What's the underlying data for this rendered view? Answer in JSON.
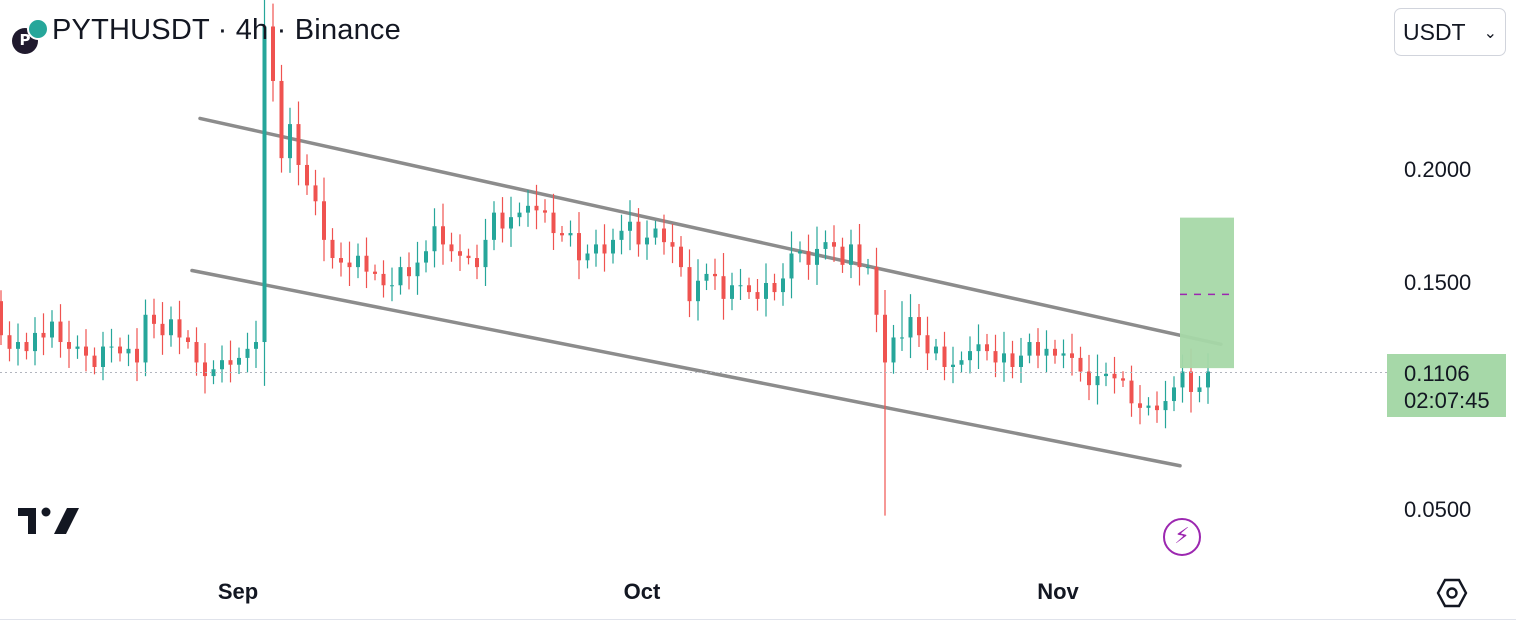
{
  "header": {
    "title": "PYTHUSDT · 4h · Binance",
    "coin_icon": "pyth-network-icon"
  },
  "currency_select": {
    "value": "USDT"
  },
  "price_tag": {
    "price": "0.1106",
    "countdown": "02:07:45"
  },
  "colors": {
    "up": "#26a69a",
    "down": "#ef5350",
    "channel": "#8c8c8c",
    "target_box": "#a6d8a8",
    "target_dash": "#9c27b0",
    "bolt": "#9c27b0"
  },
  "chart_data": {
    "type": "candlestick",
    "symbol": "PYTHUSDT",
    "interval": "4h",
    "exchange": "Binance",
    "y_ticks": [
      "0.2000",
      "0.1500",
      "0.0500"
    ],
    "x_ticks": [
      "Sep",
      "Oct",
      "Nov"
    ],
    "last_price": 0.1106,
    "grid": false,
    "candles": [
      [
        0.142,
        0.127
      ],
      [
        0.127,
        0.121
      ],
      [
        0.121,
        0.124
      ],
      [
        0.124,
        0.12
      ],
      [
        0.12,
        0.128
      ],
      [
        0.128,
        0.126
      ],
      [
        0.126,
        0.133
      ],
      [
        0.133,
        0.124
      ],
      [
        0.124,
        0.121
      ],
      [
        0.121,
        0.122
      ],
      [
        0.122,
        0.118
      ],
      [
        0.118,
        0.113
      ],
      [
        0.113,
        0.122
      ],
      [
        0.122,
        0.122
      ],
      [
        0.122,
        0.119
      ],
      [
        0.119,
        0.121
      ],
      [
        0.121,
        0.115
      ],
      [
        0.115,
        0.136
      ],
      [
        0.136,
        0.132
      ],
      [
        0.132,
        0.127
      ],
      [
        0.127,
        0.134
      ],
      [
        0.134,
        0.126
      ],
      [
        0.126,
        0.124
      ],
      [
        0.124,
        0.115
      ],
      [
        0.115,
        0.109
      ],
      [
        0.109,
        0.112
      ],
      [
        0.112,
        0.116
      ],
      [
        0.116,
        0.114
      ],
      [
        0.114,
        0.117
      ],
      [
        0.117,
        0.121
      ],
      [
        0.121,
        0.124
      ],
      [
        0.124,
        0.263
      ],
      [
        0.263,
        0.239
      ],
      [
        0.239,
        0.205
      ],
      [
        0.205,
        0.22
      ],
      [
        0.22,
        0.202
      ],
      [
        0.202,
        0.193
      ],
      [
        0.193,
        0.186
      ],
      [
        0.186,
        0.169
      ],
      [
        0.169,
        0.161
      ],
      [
        0.161,
        0.159
      ],
      [
        0.159,
        0.157
      ],
      [
        0.157,
        0.162
      ],
      [
        0.162,
        0.155
      ],
      [
        0.155,
        0.154
      ],
      [
        0.154,
        0.149
      ],
      [
        0.149,
        0.149
      ],
      [
        0.149,
        0.157
      ],
      [
        0.157,
        0.153
      ],
      [
        0.153,
        0.159
      ],
      [
        0.159,
        0.164
      ],
      [
        0.164,
        0.175
      ],
      [
        0.175,
        0.167
      ],
      [
        0.167,
        0.164
      ],
      [
        0.164,
        0.162
      ],
      [
        0.162,
        0.161
      ],
      [
        0.161,
        0.157
      ],
      [
        0.157,
        0.169
      ],
      [
        0.169,
        0.181
      ],
      [
        0.181,
        0.174
      ],
      [
        0.174,
        0.179
      ],
      [
        0.179,
        0.181
      ],
      [
        0.181,
        0.184
      ],
      [
        0.184,
        0.182
      ],
      [
        0.182,
        0.181
      ],
      [
        0.181,
        0.172
      ],
      [
        0.172,
        0.171
      ],
      [
        0.171,
        0.172
      ],
      [
        0.172,
        0.16
      ],
      [
        0.16,
        0.163
      ],
      [
        0.163,
        0.167
      ],
      [
        0.167,
        0.163
      ],
      [
        0.163,
        0.169
      ],
      [
        0.169,
        0.173
      ],
      [
        0.173,
        0.177
      ],
      [
        0.177,
        0.167
      ],
      [
        0.167,
        0.17
      ],
      [
        0.17,
        0.174
      ],
      [
        0.174,
        0.168
      ],
      [
        0.168,
        0.166
      ],
      [
        0.166,
        0.157
      ],
      [
        0.157,
        0.142
      ],
      [
        0.142,
        0.151
      ],
      [
        0.151,
        0.154
      ],
      [
        0.154,
        0.153
      ],
      [
        0.153,
        0.143
      ],
      [
        0.143,
        0.149
      ],
      [
        0.149,
        0.149
      ],
      [
        0.149,
        0.146
      ],
      [
        0.146,
        0.143
      ],
      [
        0.143,
        0.15
      ],
      [
        0.15,
        0.146
      ],
      [
        0.146,
        0.152
      ],
      [
        0.152,
        0.163
      ],
      [
        0.163,
        0.164
      ],
      [
        0.164,
        0.158
      ],
      [
        0.158,
        0.165
      ],
      [
        0.165,
        0.168
      ],
      [
        0.168,
        0.166
      ],
      [
        0.166,
        0.158
      ],
      [
        0.158,
        0.167
      ],
      [
        0.167,
        0.157
      ],
      [
        0.157,
        0.157
      ],
      [
        0.157,
        0.136
      ],
      [
        0.136,
        0.115
      ],
      [
        0.115,
        0.126
      ],
      [
        0.126,
        0.126
      ],
      [
        0.126,
        0.135
      ],
      [
        0.135,
        0.127
      ],
      [
        0.127,
        0.119
      ],
      [
        0.119,
        0.122
      ],
      [
        0.122,
        0.113
      ],
      [
        0.113,
        0.114
      ],
      [
        0.114,
        0.116
      ],
      [
        0.116,
        0.12
      ],
      [
        0.12,
        0.123
      ],
      [
        0.123,
        0.12
      ],
      [
        0.12,
        0.115
      ],
      [
        0.115,
        0.119
      ],
      [
        0.119,
        0.113
      ],
      [
        0.113,
        0.118
      ],
      [
        0.118,
        0.124
      ],
      [
        0.124,
        0.118
      ],
      [
        0.118,
        0.121
      ],
      [
        0.121,
        0.118
      ],
      [
        0.118,
        0.119
      ],
      [
        0.119,
        0.117
      ],
      [
        0.117,
        0.111
      ],
      [
        0.111,
        0.105
      ],
      [
        0.105,
        0.109
      ],
      [
        0.109,
        0.11
      ],
      [
        0.11,
        0.108
      ],
      [
        0.108,
        0.107
      ],
      [
        0.107,
        0.097
      ],
      [
        0.097,
        0.095
      ],
      [
        0.095,
        0.096
      ],
      [
        0.096,
        0.094
      ],
      [
        0.094,
        0.098
      ],
      [
        0.098,
        0.104
      ],
      [
        0.104,
        0.111
      ],
      [
        0.111,
        0.102
      ],
      [
        0.102,
        0.104
      ],
      [
        0.104,
        0.111
      ]
    ],
    "annotations": {
      "channel_upper": [
        [
          0.2225,
          0
        ],
        [
          0.123,
          1
        ]
      ],
      "channel_lower": [
        [
          0.1555,
          0
        ],
        [
          0.0695,
          1
        ]
      ],
      "target_zone": {
        "top": 0.1788,
        "bottom": 0.1125,
        "target": 0.145
      },
      "spike_low": 0.0475,
      "spike_high": 0.283
    }
  }
}
